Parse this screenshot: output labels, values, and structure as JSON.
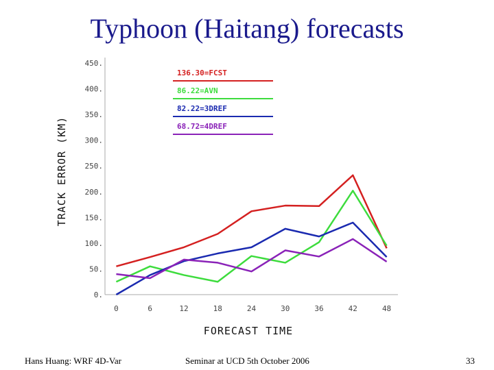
{
  "slide": {
    "title": "Typhoon (Haitang) forecasts",
    "footer_left": "Hans Huang: WRF 4D-Var",
    "footer_center": "Seminar at UCD  5th October 2006",
    "page_number": "33"
  },
  "chart_data": {
    "type": "line",
    "title": "",
    "xlabel": "FORECAST TIME",
    "ylabel": "TRACK ERROR (KM)",
    "x": [
      0,
      6,
      12,
      18,
      24,
      30,
      36,
      42,
      48
    ],
    "x_tick_labels": [
      "0",
      "6",
      "12",
      "18",
      "24",
      "30",
      "36",
      "42",
      "48"
    ],
    "y_ticks": [
      0,
      50,
      100,
      150,
      200,
      250,
      300,
      350,
      400,
      450
    ],
    "y_tick_labels": [
      "0.",
      "50.",
      "100.",
      "150.",
      "200.",
      "250.",
      "300.",
      "350.",
      "400.",
      "450."
    ],
    "xlim": [
      -2,
      50
    ],
    "ylim": [
      0,
      450
    ],
    "grid": false,
    "legend_placement": "top-left",
    "series": [
      {
        "name": "136.30=FCST",
        "color": "#d42020",
        "values": [
          55,
          73,
          92,
          118,
          162,
          173,
          172,
          232,
          90
        ]
      },
      {
        "name": "86.22=AVN",
        "color": "#3ddc3d",
        "values": [
          25,
          55,
          38,
          25,
          75,
          62,
          102,
          202,
          95
        ]
      },
      {
        "name": "82.22=3DREF",
        "color": "#1a2ab0",
        "values": [
          0,
          38,
          65,
          80,
          92,
          128,
          113,
          140,
          73
        ]
      },
      {
        "name": "68.72=4DREF",
        "color": "#8a22b8",
        "values": [
          40,
          32,
          68,
          62,
          45,
          86,
          74,
          108,
          64
        ]
      }
    ]
  }
}
